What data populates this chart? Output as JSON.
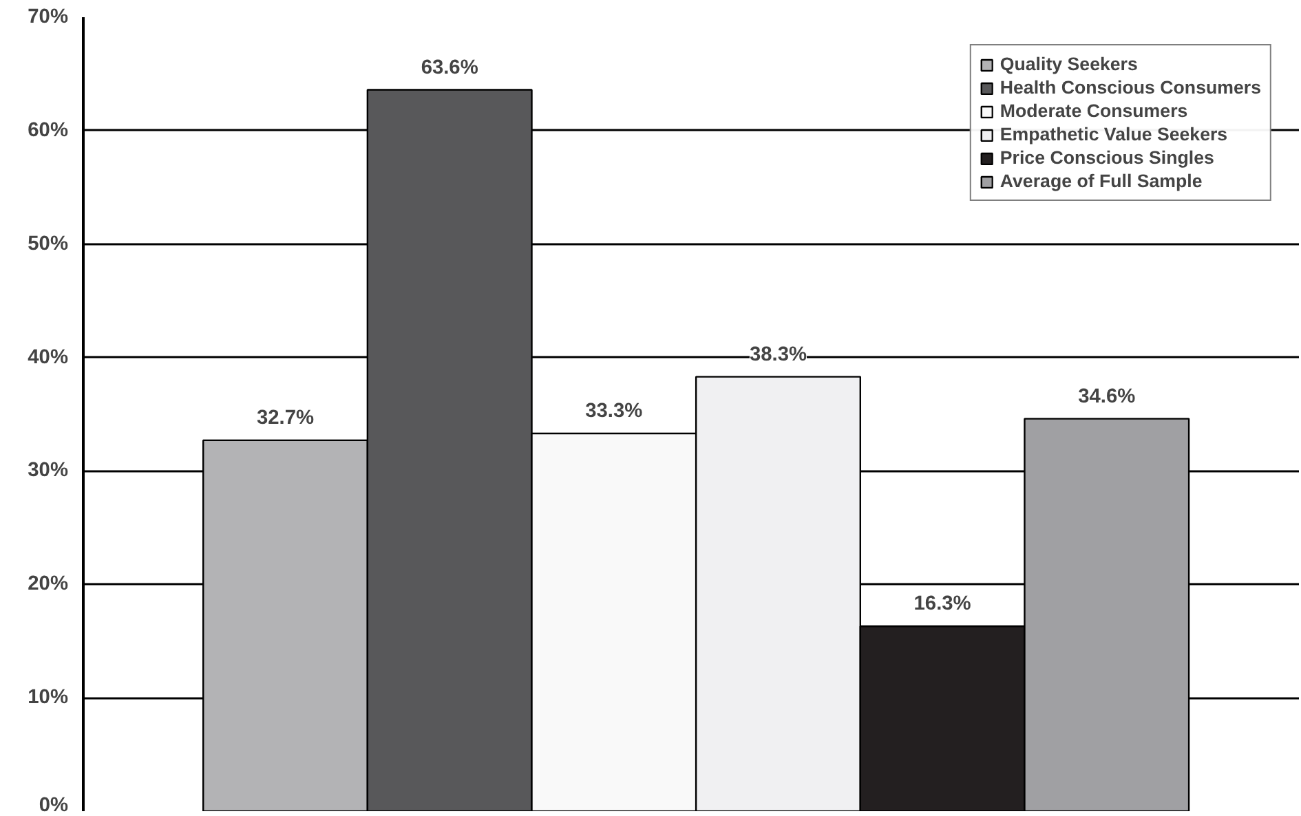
{
  "chart_data": {
    "type": "bar",
    "categories": [
      null,
      null,
      null,
      null,
      null,
      null
    ],
    "series": [
      {
        "name": "Quality Seekers",
        "color": "#b3b3b5",
        "values": [
          32.7,
          null,
          null,
          null,
          null,
          null
        ],
        "value_labels": [
          "32.7%",
          null,
          null,
          null,
          null,
          null
        ]
      },
      {
        "name": "Health Conscious Consumers",
        "color": "#58585a",
        "values": [
          null,
          63.6,
          null,
          null,
          null,
          null
        ],
        "value_labels": [
          null,
          "63.6%",
          null,
          null,
          null,
          null
        ]
      },
      {
        "name": "Moderate Consumers",
        "color": "#f9f9f9",
        "values": [
          null,
          null,
          33.3,
          null,
          null,
          null
        ],
        "value_labels": [
          null,
          null,
          "33.3%",
          null,
          null,
          null
        ]
      },
      {
        "name": "Empathetic Value Seekers",
        "color": "#f0f0f2",
        "values": [
          null,
          null,
          null,
          38.3,
          null,
          null
        ],
        "value_labels": [
          null,
          null,
          null,
          "38.3%",
          null,
          null
        ]
      },
      {
        "name": "Price Conscious Singles",
        "color": "#231f20",
        "values": [
          null,
          null,
          null,
          null,
          16.3,
          null
        ],
        "value_labels": [
          null,
          null,
          null,
          null,
          "16.3%",
          null
        ]
      },
      {
        "name": "Average of Full Sample",
        "color": "#a0a0a3",
        "values": [
          null,
          null,
          null,
          null,
          null,
          34.6
        ],
        "value_labels": [
          null,
          null,
          null,
          null,
          null,
          "34.6%"
        ]
      }
    ],
    "ylim": [
      0,
      70
    ],
    "yticks": [
      {
        "value": 0,
        "label": "0%"
      },
      {
        "value": 10,
        "label": "10%"
      },
      {
        "value": 20,
        "label": "20%"
      },
      {
        "value": 30,
        "label": "30%"
      },
      {
        "value": 40,
        "label": "40%"
      },
      {
        "value": 50,
        "label": "50%"
      },
      {
        "value": 60,
        "label": "60%"
      },
      {
        "value": 70,
        "label": "70%"
      }
    ],
    "tick_labels": "y",
    "grid": "y",
    "legend": "top right"
  }
}
